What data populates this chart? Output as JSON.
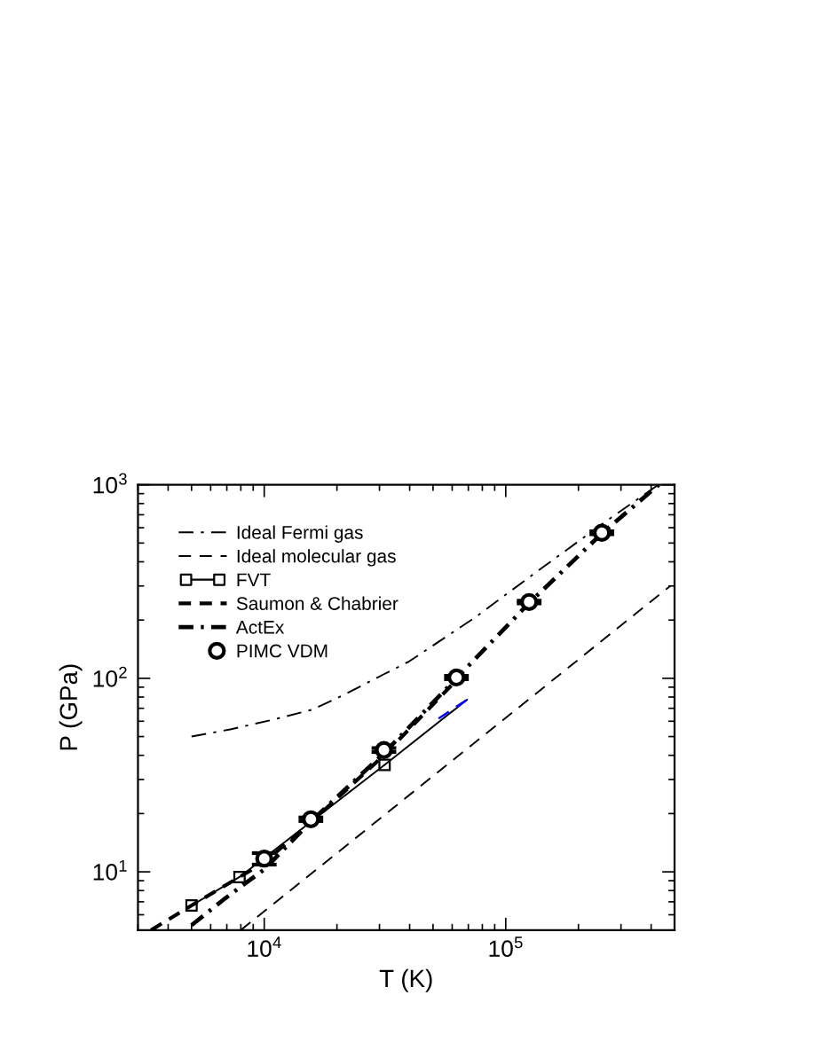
{
  "chart_data": {
    "type": "line",
    "xlabel": "T (K)",
    "ylabel": "P (GPa)",
    "log": "xy",
    "xlim": [
      3000,
      500000
    ],
    "ylim": [
      5,
      1000
    ],
    "xticks": [
      {
        "value": 10000,
        "label": "10$^{4}$"
      },
      {
        "value": 100000,
        "label": "10$^{5}$"
      }
    ],
    "yticks": [
      {
        "value": 10,
        "label": "10$^{1}$"
      },
      {
        "value": 100,
        "label": "10$^{2}$"
      },
      {
        "value": 1000,
        "label": "10$^{3}$"
      }
    ],
    "legend": "top left",
    "series": [
      {
        "name": "Ideal Fermi gas",
        "color": "#000000",
        "line_style": "dashdot",
        "marker": "none",
        "x": [
          5000,
          7300,
          10800,
          15900,
          21300,
          31300,
          39700,
          74100,
          126000,
          251000,
          428000
        ],
        "values": [
          50,
          54.6,
          61,
          69,
          82,
          105,
          122,
          205,
          335,
          628,
          1000
        ]
      },
      {
        "name": "Ideal molecular gas",
        "color": "#000000",
        "line_style": "dashed",
        "marker": "none",
        "x": [
          8000,
          480000
        ],
        "values": [
          5,
          300
        ]
      },
      {
        "name": "FVT",
        "color": "#000000",
        "line_style": "solid",
        "marker": "square",
        "x": [
          5000,
          7900,
          31500
        ],
        "values": [
          6.7,
          9.4,
          35.7
        ]
      },
      {
        "name": "Saumon & Chabrier",
        "color": "#000000",
        "line_style": "dashed",
        "marker": "none",
        "x": [
          3400,
          5000,
          7900,
          10000,
          15600,
          31300,
          66000
        ],
        "values": [
          5,
          6.7,
          9.4,
          11.2,
          18,
          40,
          105
        ]
      },
      {
        "name": "ActEx",
        "color": "#000000",
        "line_style": "dashdot",
        "marker": "none",
        "x": [
          5000,
          6800,
          10000,
          15600,
          31300,
          62500,
          125000,
          250000,
          430000
        ],
        "values": [
          5.3,
          7.2,
          10.3,
          18.2,
          41,
          100,
          245,
          560,
          1000
        ]
      },
      {
        "name": "PIMC VDM",
        "type": "scatter",
        "color": "#000000",
        "marker": "circle",
        "x": [
          10000,
          15600,
          31300,
          62500,
          125000,
          250000
        ],
        "values": [
          11.7,
          18.7,
          42.6,
          101,
          248,
          565
        ],
        "errors": [
          0.8,
          0.4,
          1,
          2,
          4,
          10
        ]
      },
      {
        "color": "#000000",
        "line_style": "solid",
        "marker": "none",
        "x": [
          31500,
          69200
        ],
        "values": [
          35.7,
          77.6
        ]
      },
      {
        "color": "#0000ff",
        "line_style": "dashed",
        "marker": "none",
        "x": [
          52700,
          69200
        ],
        "values": [
          62,
          77.6
        ]
      }
    ]
  }
}
